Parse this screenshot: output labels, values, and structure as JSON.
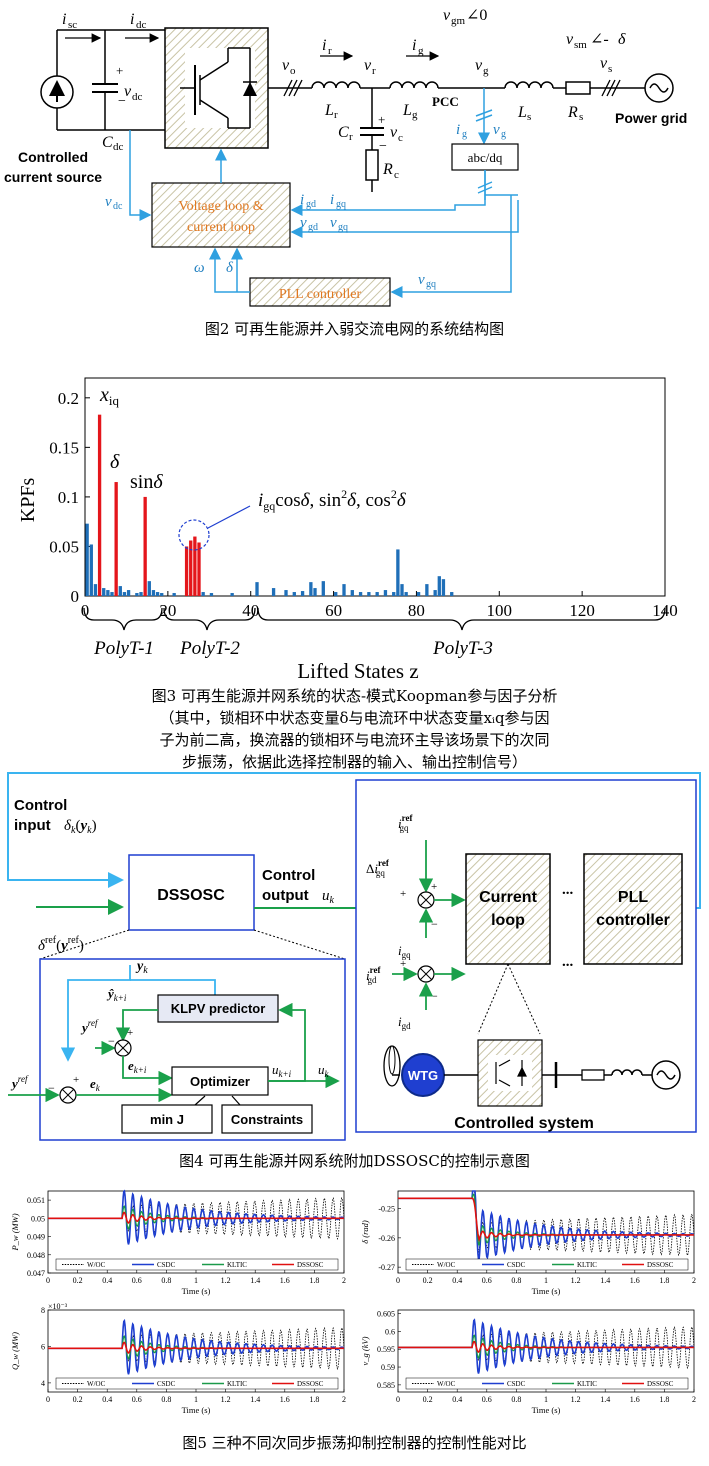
{
  "fig2": {
    "caption": "图2 可再生能源并入弱交流电网的系统结构图",
    "controlled_source_line1": "Controlled",
    "controlled_source_line2": "current source",
    "block_control_line1": "Voltage loop &",
    "block_control_line2": "current loop",
    "block_pll": "PLL controller",
    "block_abcdq": "abc/dq",
    "pcc": "PCC",
    "power_grid": "Power grid"
  },
  "fig3": {
    "caption_lines": [
      "图3 可再生能源并网系统的状态-模式Koopman参与因子分析",
      "（其中，锁相环中状态变量δ与电流环中状态变量xᵢq参与因",
      "子为前二高，换流器的锁相环与电流环主导该场景下的次同",
      "步振荡，依据此选择控制器的输入、输出控制信号）"
    ],
    "chart_data": {
      "type": "bar",
      "ylabel": "KPFs",
      "xlabel": "Lifted States z",
      "xlim": [
        0,
        140
      ],
      "ylim": [
        0,
        0.22
      ],
      "xticks": [
        0,
        20,
        40,
        60,
        80,
        100,
        120,
        140
      ],
      "yticks": [
        0,
        0.05,
        0.1,
        0.15,
        0.2
      ],
      "annotations": [
        "x_iq",
        "δ",
        "sinδ",
        "i_gq cosδ, sin²δ, cos²δ"
      ],
      "groups": [
        "PolyT-1",
        "PolyT-2",
        "PolyT-3"
      ],
      "highlighted": [
        {
          "x": 3,
          "y": 0.183
        },
        {
          "x": 7,
          "y": 0.115
        },
        {
          "x": 14,
          "y": 0.1
        },
        {
          "x": 24,
          "y": 0.05
        },
        {
          "x": 25,
          "y": 0.056
        },
        {
          "x": 26,
          "y": 0.06
        },
        {
          "x": 27,
          "y": 0.054
        }
      ],
      "others": [
        {
          "x": 0,
          "y": 0.073
        },
        {
          "x": 1,
          "y": 0.052
        },
        {
          "x": 2,
          "y": 0.012
        },
        {
          "x": 4,
          "y": 0.008
        },
        {
          "x": 5,
          "y": 0.006
        },
        {
          "x": 6,
          "y": 0.004
        },
        {
          "x": 8,
          "y": 0.01
        },
        {
          "x": 9,
          "y": 0.004
        },
        {
          "x": 10,
          "y": 0.006
        },
        {
          "x": 12,
          "y": 0.003
        },
        {
          "x": 13,
          "y": 0.004
        },
        {
          "x": 15,
          "y": 0.015
        },
        {
          "x": 16,
          "y": 0.006
        },
        {
          "x": 17,
          "y": 0.004
        },
        {
          "x": 18,
          "y": 0.003
        },
        {
          "x": 21,
          "y": 0.003
        },
        {
          "x": 28,
          "y": 0.004
        },
        {
          "x": 30,
          "y": 0.003
        },
        {
          "x": 35,
          "y": 0.003
        },
        {
          "x": 41,
          "y": 0.014
        },
        {
          "x": 45,
          "y": 0.008
        },
        {
          "x": 48,
          "y": 0.006
        },
        {
          "x": 50,
          "y": 0.004
        },
        {
          "x": 52,
          "y": 0.005
        },
        {
          "x": 54,
          "y": 0.014
        },
        {
          "x": 55,
          "y": 0.008
        },
        {
          "x": 57,
          "y": 0.015
        },
        {
          "x": 60,
          "y": 0.004
        },
        {
          "x": 62,
          "y": 0.012
        },
        {
          "x": 64,
          "y": 0.006
        },
        {
          "x": 66,
          "y": 0.004
        },
        {
          "x": 68,
          "y": 0.004
        },
        {
          "x": 70,
          "y": 0.004
        },
        {
          "x": 72,
          "y": 0.006
        },
        {
          "x": 74,
          "y": 0.004
        },
        {
          "x": 75,
          "y": 0.047
        },
        {
          "x": 76,
          "y": 0.012
        },
        {
          "x": 77,
          "y": 0.004
        },
        {
          "x": 80,
          "y": 0.004
        },
        {
          "x": 82,
          "y": 0.012
        },
        {
          "x": 84,
          "y": 0.006
        },
        {
          "x": 85,
          "y": 0.02
        },
        {
          "x": 86,
          "y": 0.017
        },
        {
          "x": 88,
          "y": 0.004
        }
      ]
    }
  },
  "fig4": {
    "caption": "图4 可再生能源并网系统附加DSSOSC的控制示意图",
    "control_input_label": "Control",
    "control_input_label2": "input",
    "control_output_label": "Control",
    "control_output_label2": "output",
    "dssosc": "DSSOSC",
    "klpv": "KLPV predictor",
    "optimizer": "Optimizer",
    "min_j": "min J",
    "constraints": "Constraints",
    "current_loop_line1": "Current",
    "current_loop_line2": "loop",
    "pll_line1": "PLL",
    "pll_line2": "controller",
    "wtg": "WTG",
    "controlled_system": "Controlled system",
    "dots": "..."
  },
  "fig5": {
    "caption": "图5 三种不同次同步振荡抑制控制器的控制性能对比",
    "legend": [
      "W/OC",
      "CSDC",
      "KLTIC",
      "DSSOSC"
    ],
    "colors": {
      "W/OC": "#000000",
      "CSDC": "#1f3fd0",
      "KLTIC": "#1b9a4a",
      "DSSOSC": "#e01010"
    },
    "xlabel": "Time (s)",
    "chart_data": [
      {
        "type": "line",
        "ylabel": "P_w (MW)",
        "ylim": [
          0.047,
          0.0515
        ],
        "yticks": [
          "0.047",
          "0.048",
          "0.049",
          "0.05",
          "0.051"
        ],
        "steady": 0.05,
        "xlim": [
          0,
          2
        ],
        "xticks": [
          "0",
          "0.2",
          "0.4",
          "0.6",
          "0.8",
          "1",
          "1.2",
          "1.4",
          "1.6",
          "1.8",
          "2"
        ]
      },
      {
        "type": "line",
        "ylabel": "δ (rad)",
        "ylim": [
          -0.272,
          -0.244
        ],
        "yticks": [
          "-0.25",
          "-0.26",
          "-0.27"
        ],
        "pre": -0.2465,
        "steady": -0.259,
        "xlim": [
          0,
          2
        ],
        "xticks": [
          "0",
          "0.2",
          "0.4",
          "0.6",
          "0.8",
          "1",
          "1.2",
          "1.4",
          "1.6",
          "1.8",
          "2"
        ]
      },
      {
        "type": "line",
        "ylabel": "Q_w (MW)",
        "exponent": "×10⁻³",
        "ylim": [
          0.0035,
          0.008
        ],
        "yticks": [
          "4",
          "6",
          "8"
        ],
        "steady": 0.0059,
        "xlim": [
          0,
          2
        ],
        "xticks": [
          "0",
          "0.2",
          "0.4",
          "0.6",
          "0.8",
          "1",
          "1.2",
          "1.4",
          "1.6",
          "1.8",
          "2"
        ]
      },
      {
        "type": "line",
        "ylabel": "v_g (kV)",
        "ylim": [
          0.583,
          0.606
        ],
        "yticks": [
          "0.585",
          "0.59",
          "0.595",
          "0.6",
          "0.605"
        ],
        "steady": 0.5955,
        "xlim": [
          0,
          2
        ],
        "xticks": [
          "0",
          "0.2",
          "0.4",
          "0.6",
          "0.8",
          "1",
          "1.2",
          "1.4",
          "1.6",
          "1.8",
          "2"
        ]
      }
    ]
  }
}
